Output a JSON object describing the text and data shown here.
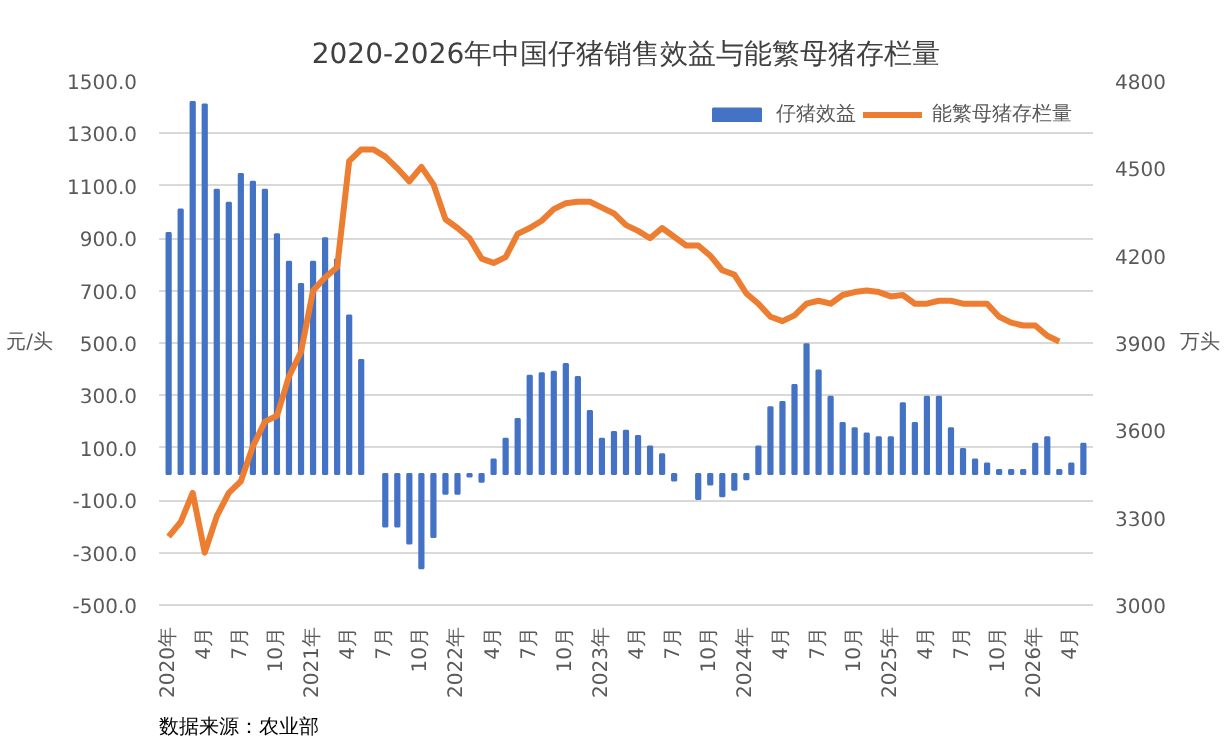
{
  "chart_data": {
    "type": "bar",
    "title": "2020-2026年中国仔猪销售效益与能繁母猪存栏量",
    "categories": [
      "2020年",
      null,
      null,
      "4月",
      null,
      null,
      "7月",
      null,
      null,
      "10月",
      null,
      null,
      "2021年",
      null,
      null,
      "4月",
      null,
      null,
      "7月",
      null,
      null,
      "10月",
      null,
      null,
      "2022年",
      null,
      null,
      "4月",
      null,
      null,
      "7月",
      null,
      null,
      "10月",
      null,
      null,
      "2023年",
      null,
      null,
      "4月",
      null,
      null,
      "7月",
      null,
      null,
      "10月",
      null,
      null,
      "2024年",
      null,
      null,
      "4月",
      null,
      null,
      "7月",
      null,
      null,
      "10月",
      null,
      null,
      "2025年",
      null,
      null,
      "4月",
      null,
      null,
      "7月",
      null,
      null,
      "10月",
      null,
      null,
      "2026年",
      null,
      null,
      "4月",
      null
    ],
    "series": [
      {
        "name": "仔猪效益",
        "color": "#4472c4",
        "values": [
          920,
          1010,
          1420,
          1410,
          1085,
          1035,
          1145,
          1115,
          1085,
          915,
          810,
          725,
          810,
          900,
          820,
          605,
          435,
          null,
          -200,
          -200,
          -265,
          -360,
          -240,
          -75,
          -75,
          -10,
          -30,
          55,
          135,
          210,
          375,
          385,
          390,
          420,
          370,
          240,
          135,
          160,
          165,
          145,
          105,
          75,
          -25,
          null,
          -95,
          -40,
          -85,
          -60,
          -20,
          105,
          255,
          275,
          340,
          495,
          395,
          295,
          195,
          175,
          155,
          140,
          140,
          270,
          195,
          295,
          295,
          175,
          95,
          55,
          40,
          15,
          15,
          15,
          115,
          140,
          15,
          40,
          115
        ]
      },
      {
        "name": "能繁母猪存栏量",
        "type": "line",
        "axis": "y2",
        "color": "#ed7d31",
        "values": [
          3235,
          3285,
          3385,
          3180,
          3305,
          3385,
          3425,
          3545,
          3630,
          3650,
          3785,
          3870,
          4080,
          4125,
          4160,
          4525,
          4565,
          4565,
          4540,
          4500,
          4455,
          4505,
          4445,
          4325,
          4295,
          4260,
          4190,
          4175,
          4195,
          4275,
          4295,
          4320,
          4360,
          4380,
          4385,
          4385,
          4365,
          4345,
          4305,
          4285,
          4260,
          4295,
          4265,
          4235,
          4235,
          4200,
          4150,
          4135,
          4070,
          4035,
          3990,
          3975,
          3995,
          4035,
          4045,
          4035,
          4065,
          4075,
          4080,
          4075,
          4060,
          4065,
          4035,
          4035,
          4045,
          4045,
          4035,
          4035,
          4035,
          3990,
          3970,
          3960,
          3960,
          3925,
          3905,
          null,
          null
        ]
      }
    ],
    "ylabel": "元/头",
    "y2label": "万头",
    "ylim": [
      -500,
      1500
    ],
    "yticks": [
      {
        "value": -500,
        "label": "-500.0"
      },
      {
        "value": -300,
        "label": "-300.0"
      },
      {
        "value": -100,
        "label": "-100.0"
      },
      {
        "value": 100,
        "label": "100.0"
      },
      {
        "value": 300,
        "label": "300.0"
      },
      {
        "value": 500,
        "label": "500.0"
      },
      {
        "value": 700,
        "label": "700.0"
      },
      {
        "value": 900,
        "label": "900.0"
      },
      {
        "value": 1100,
        "label": "1100.0"
      },
      {
        "value": 1300,
        "label": "1300.0"
      },
      {
        "value": 1500,
        "label": "1500.0"
      }
    ],
    "y2lim": [
      3000,
      4800
    ],
    "y2ticks": [
      3000,
      3300,
      3600,
      3900,
      4200,
      4500,
      4800
    ],
    "grid": "y",
    "legend": "top right",
    "annotations": [
      "数据来源：农业部"
    ]
  }
}
